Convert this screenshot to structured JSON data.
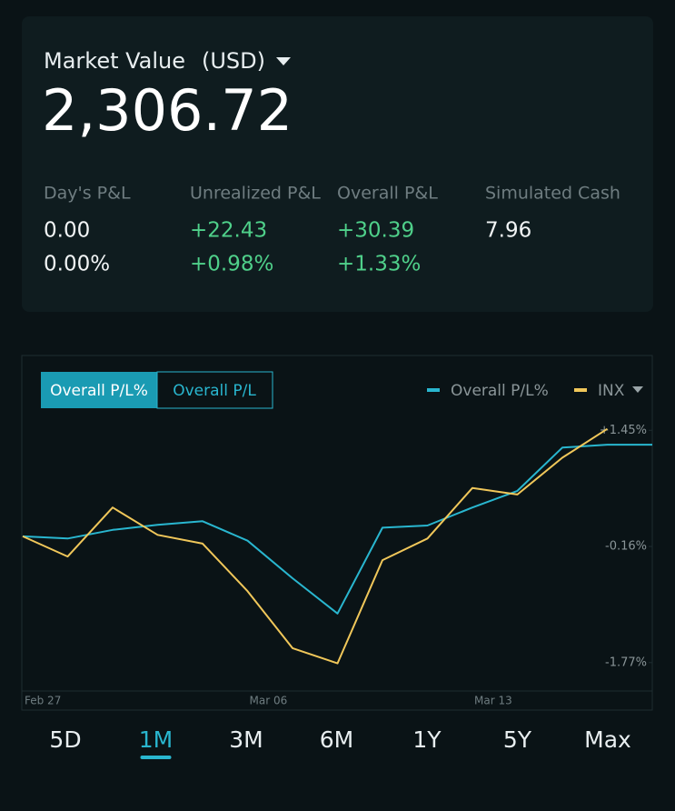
{
  "header": {
    "title": "Market Value",
    "currency": "(USD)",
    "value": "2,306.72"
  },
  "stats": [
    {
      "label": "Day's P&L",
      "values": [
        "0.00",
        "0.00%"
      ]
    },
    {
      "label": "Unrealized P&L",
      "values": [
        "+22.43",
        "+0.98%"
      ]
    },
    {
      "label": "Overall P&L",
      "values": [
        "+30.39",
        "+1.33%"
      ]
    },
    {
      "label": "Simulated Cash",
      "values": [
        "7.96"
      ]
    }
  ],
  "chart_toggle": [
    "Overall P/L%",
    "Overall P/L"
  ],
  "chart_data": {
    "type": "line",
    "categories": [
      "Feb 27",
      null,
      null,
      null,
      null,
      "Mar 06",
      null,
      null,
      null,
      null,
      "Mar 13",
      null,
      null,
      null,
      null
    ],
    "series": [
      {
        "name": "Overall P/L%",
        "color": "#29b6cf",
        "values": [
          -0.02,
          -0.05,
          0.07,
          0.14,
          0.19,
          -0.08,
          -0.6,
          -1.09,
          0.1,
          0.13,
          0.38,
          0.61,
          1.21,
          1.25,
          1.25
        ]
      },
      {
        "name": "INX",
        "color": "#f0c75a",
        "values": [
          -0.02,
          -0.3,
          0.38,
          0.0,
          -0.12,
          -0.78,
          -1.57,
          -1.78,
          -0.35,
          -0.05,
          0.65,
          0.56,
          1.07,
          1.47,
          null
        ]
      }
    ],
    "ylim": [
      -2.1,
      1.68
    ],
    "yticks": [
      {
        "value": -1.77,
        "label": "-1.77%"
      },
      {
        "value": -0.16,
        "label": "-0.16%"
      },
      {
        "value": 1.45,
        "label": "+1.45%"
      }
    ],
    "legend": "top-right",
    "grid": false
  },
  "periods": [
    "5D",
    "1M",
    "3M",
    "6M",
    "1Y",
    "5Y",
    "Max"
  ]
}
